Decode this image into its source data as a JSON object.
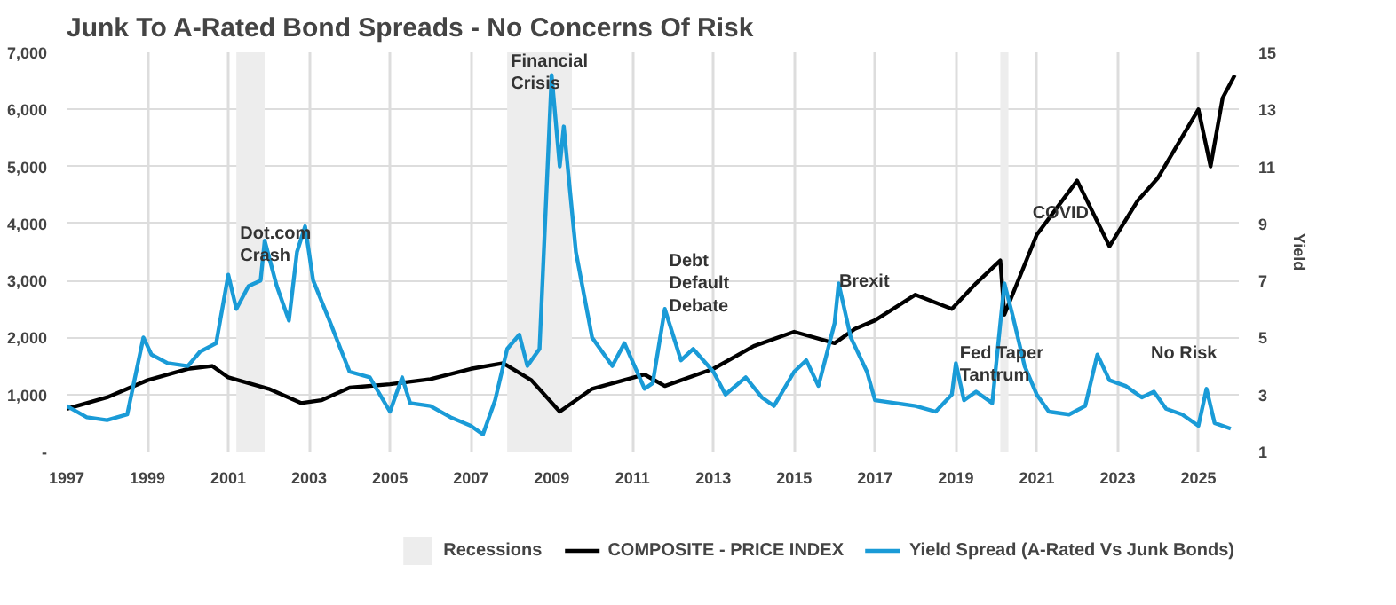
{
  "chart_data": {
    "type": "line",
    "title": "Junk To A-Rated Bond Spreads - No Concerns Of Risk",
    "y2label": "Yield",
    "xlim": [
      1997,
      2026
    ],
    "xticks": [
      1997,
      1999,
      2001,
      2003,
      2005,
      2007,
      2009,
      2011,
      2013,
      2015,
      2017,
      2019,
      2021,
      2023,
      2025
    ],
    "ylim": [
      0,
      7000
    ],
    "yticks": [
      {
        "value": 0,
        "label": "-"
      },
      {
        "value": 1000,
        "label": "1,000"
      },
      {
        "value": 2000,
        "label": "2,000"
      },
      {
        "value": 3000,
        "label": "3,000"
      },
      {
        "value": 4000,
        "label": "4,000"
      },
      {
        "value": 5000,
        "label": "5,000"
      },
      {
        "value": 6000,
        "label": "6,000"
      },
      {
        "value": 7000,
        "label": "7,000"
      }
    ],
    "y2lim": [
      1,
      15
    ],
    "y2ticks": [
      1,
      3,
      5,
      7,
      9,
      11,
      13,
      15
    ],
    "grid": true,
    "legend": "bottom",
    "bands": [
      {
        "axis": "x",
        "from": 2001.2,
        "to": 2001.9,
        "label": "Recessions",
        "color": "#ededed"
      },
      {
        "axis": "x",
        "from": 2007.9,
        "to": 2009.5,
        "color": "#ededed"
      },
      {
        "axis": "x",
        "from": 2020.1,
        "to": 2020.3,
        "color": "#ededed"
      }
    ],
    "series": [
      {
        "name": "COMPOSITE - PRICE INDEX",
        "color": "#000000",
        "x": [
          1997,
          1998,
          1999,
          2000,
          2000.6,
          2001,
          2002,
          2002.8,
          2003.3,
          2004,
          2005,
          2006,
          2007,
          2007.8,
          2008.5,
          2009.2,
          2010,
          2011.3,
          2011.8,
          2013,
          2014,
          2015,
          2016,
          2016.5,
          2017,
          2018,
          2018.9,
          2019.5,
          2020.1,
          2020.2,
          2021,
          2022,
          2022.8,
          2023.5,
          2024,
          2025,
          2025.3,
          2025.6,
          2025.9
        ],
        "values": [
          750,
          950,
          1250,
          1450,
          1500,
          1300,
          1100,
          850,
          900,
          1120,
          1180,
          1270,
          1450,
          1550,
          1250,
          700,
          1100,
          1350,
          1150,
          1450,
          1850,
          2100,
          1900,
          2150,
          2300,
          2750,
          2500,
          2950,
          3350,
          2400,
          3800,
          4750,
          3600,
          4400,
          4800,
          6000,
          5000,
          6200,
          6600
        ]
      },
      {
        "name": "Yield Spread (A-Rated Vs Junk Bonds)",
        "color": "#1a9bd7",
        "axis": "y2",
        "x": [
          1997,
          1997.5,
          1998,
          1998.5,
          1998.9,
          1999.1,
          1999.5,
          2000,
          2000.3,
          2000.7,
          2001,
          2001.2,
          2001.5,
          2001.8,
          2001.9,
          2002.2,
          2002.5,
          2002.7,
          2002.9,
          2003.1,
          2003.5,
          2004,
          2004.5,
          2005,
          2005.3,
          2005.5,
          2006,
          2006.5,
          2007,
          2007.3,
          2007.6,
          2007.9,
          2008.2,
          2008.4,
          2008.7,
          2009,
          2009.2,
          2009.3,
          2009.6,
          2010,
          2010.5,
          2010.8,
          2011.3,
          2011.5,
          2011.8,
          2012.2,
          2012.5,
          2013,
          2013.3,
          2013.8,
          2014.2,
          2014.5,
          2015,
          2015.3,
          2015.6,
          2016,
          2016.1,
          2016.4,
          2016.8,
          2017,
          2017.5,
          2018,
          2018.5,
          2018.9,
          2019,
          2019.2,
          2019.5,
          2019.9,
          2020.2,
          2020.4,
          2020.7,
          2021,
          2021.3,
          2021.8,
          2022.2,
          2022.5,
          2022.8,
          2023.2,
          2023.6,
          2023.9,
          2024.2,
          2024.6,
          2025,
          2025.2,
          2025.4,
          2025.8
        ],
        "values": [
          2.6,
          2.2,
          2.1,
          2.3,
          5.0,
          4.4,
          4.1,
          4.0,
          4.5,
          4.8,
          7.2,
          6.0,
          6.8,
          7.0,
          8.4,
          6.8,
          5.6,
          8.0,
          8.9,
          7.0,
          5.6,
          3.8,
          3.6,
          2.4,
          3.6,
          2.7,
          2.6,
          2.2,
          1.9,
          1.6,
          2.8,
          4.6,
          5.1,
          4.0,
          4.6,
          14.2,
          11.0,
          12.4,
          8.0,
          5.0,
          4.0,
          4.8,
          3.2,
          3.4,
          6.0,
          4.2,
          4.6,
          3.8,
          3.0,
          3.6,
          2.9,
          2.6,
          3.8,
          4.2,
          3.3,
          5.5,
          6.9,
          5.0,
          3.8,
          2.8,
          2.7,
          2.6,
          2.4,
          3.0,
          4.1,
          2.8,
          3.1,
          2.7,
          6.9,
          5.8,
          4.0,
          3.0,
          2.4,
          2.3,
          2.6,
          4.4,
          3.5,
          3.3,
          2.9,
          3.1,
          2.5,
          2.3,
          1.9,
          3.2,
          2.0,
          1.8
        ]
      }
    ],
    "annotations": [
      "Dot.com Crash",
      "Financial Crisis",
      "Debt Default Debate",
      "Brexit",
      "Fed Taper Tantrum",
      "COVID",
      "No Risk"
    ]
  }
}
